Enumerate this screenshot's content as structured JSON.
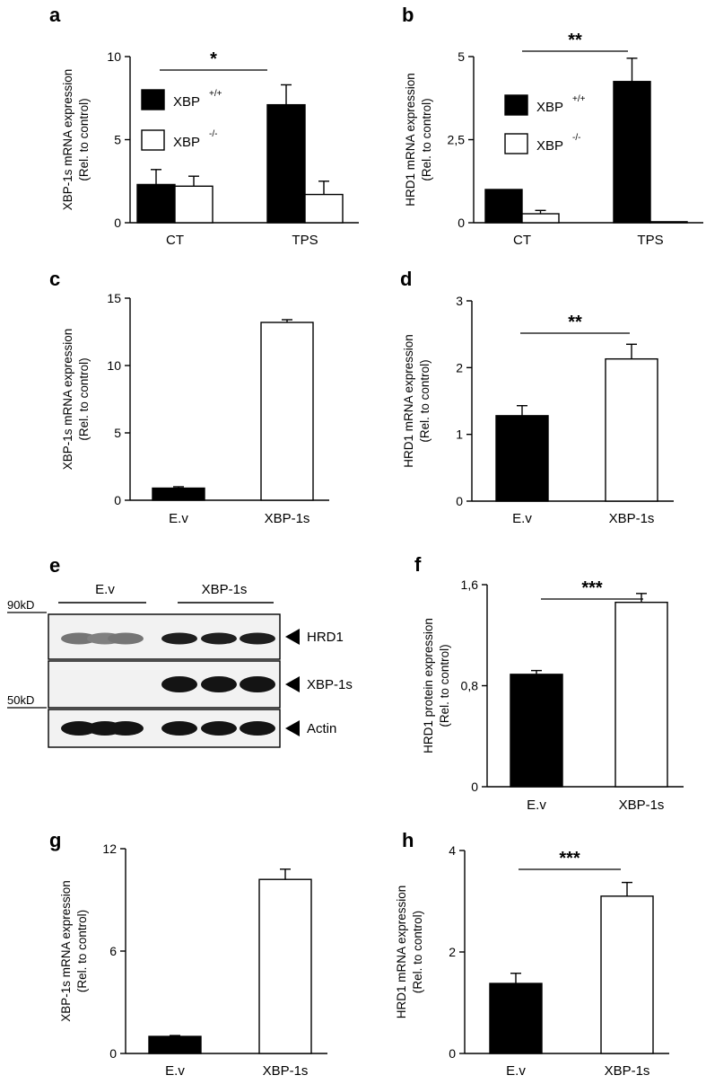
{
  "chart_data": [
    {
      "id": "a",
      "type": "bar",
      "letter": "a",
      "ylabel": [
        "XBP-1s mRNA expression",
        "(Rel. to control)"
      ],
      "ylim": [
        0,
        10
      ],
      "yticks": [
        "0",
        "5",
        "10"
      ],
      "ytick_values": [
        0,
        5,
        10
      ],
      "categories": [
        "CT",
        "TPS"
      ],
      "legend": [
        {
          "label": "XBP",
          "sup": "+/+",
          "fill": "#000000"
        },
        {
          "label": "XBP",
          "sup": "-/-",
          "fill": "#ffffff"
        }
      ],
      "series": [
        {
          "fill": "#000000",
          "values": [
            2.3,
            7.1
          ],
          "errors": [
            0.9,
            1.2
          ]
        },
        {
          "fill": "#ffffff",
          "values": [
            2.2,
            1.7
          ],
          "errors": [
            0.6,
            0.8
          ]
        }
      ],
      "significance": [
        {
          "label": "*"
        }
      ]
    },
    {
      "id": "b",
      "type": "bar",
      "letter": "b",
      "ylabel": [
        "HRD1 mRNA expression",
        "(Rel. to control)"
      ],
      "ylim": [
        0,
        5
      ],
      "yticks": [
        "0",
        "2,5",
        "5"
      ],
      "ytick_values": [
        0,
        2.5,
        5
      ],
      "categories": [
        "CT",
        "TPS"
      ],
      "legend": [
        {
          "label": "XBP",
          "sup": "+/+",
          "fill": "#000000"
        },
        {
          "label": "XBP",
          "sup": "-/-",
          "fill": "#ffffff"
        }
      ],
      "series": [
        {
          "fill": "#000000",
          "values": [
            1.0,
            4.25
          ],
          "errors": [
            0,
            0.7
          ]
        },
        {
          "fill": "#ffffff",
          "values": [
            0.27,
            0.03
          ],
          "errors": [
            0.1,
            0
          ]
        }
      ],
      "significance": [
        {
          "label": "**"
        }
      ]
    },
    {
      "id": "c",
      "type": "bar",
      "letter": "c",
      "ylabel": [
        "XBP-1s mRNA expression",
        "(Rel. to control)"
      ],
      "ylim": [
        0,
        15
      ],
      "yticks": [
        "0",
        "5",
        "10",
        "15"
      ],
      "ytick_values": [
        0,
        5,
        10,
        15
      ],
      "categories": [
        "E.v",
        "XBP-1s"
      ],
      "fills": [
        "#000000",
        "#ffffff"
      ],
      "values": [
        0.9,
        13.2
      ],
      "errors": [
        0.1,
        0.2
      ],
      "significance": []
    },
    {
      "id": "d",
      "type": "bar",
      "letter": "d",
      "ylabel": [
        "HRD1 mRNA expression",
        "(Rel. to control)"
      ],
      "ylim": [
        0,
        3
      ],
      "yticks": [
        "0",
        "1",
        "2",
        "3"
      ],
      "ytick_values": [
        0,
        1,
        2,
        3
      ],
      "categories": [
        "E.v",
        "XBP-1s"
      ],
      "fills": [
        "#000000",
        "#ffffff"
      ],
      "values": [
        1.28,
        2.13
      ],
      "errors": [
        0.15,
        0.22
      ],
      "significance": [
        {
          "label": "**"
        }
      ]
    },
    {
      "id": "f",
      "type": "bar",
      "letter": "f",
      "ylabel": [
        "HRD1 protein expression",
        "(Rel. to control)"
      ],
      "ylim": [
        0,
        1.6
      ],
      "yticks": [
        "0",
        "0,8",
        "1,6"
      ],
      "ytick_values": [
        0,
        0.8,
        1.6
      ],
      "categories": [
        "E.v",
        "XBP-1s"
      ],
      "fills": [
        "#000000",
        "#ffffff"
      ],
      "values": [
        0.89,
        1.46
      ],
      "errors": [
        0.03,
        0.07
      ],
      "significance": [
        {
          "label": "***"
        }
      ]
    },
    {
      "id": "g",
      "type": "bar",
      "letter": "g",
      "ylabel": [
        "XBP-1s mRNA expression",
        "(Rel. to control)"
      ],
      "ylim": [
        0,
        12
      ],
      "yticks": [
        "0",
        "6",
        "12"
      ],
      "ytick_values": [
        0,
        6,
        12
      ],
      "categories": [
        "E.v",
        "XBP-1s"
      ],
      "fills": [
        "#000000",
        "#ffffff"
      ],
      "values": [
        1.0,
        10.2
      ],
      "errors": [
        0.05,
        0.6
      ],
      "significance": []
    },
    {
      "id": "h",
      "type": "bar",
      "letter": "h",
      "ylabel": [
        "HRD1 mRNA expression",
        "(Rel. to control)"
      ],
      "ylim": [
        0,
        4
      ],
      "yticks": [
        "0",
        "2",
        "4"
      ],
      "ytick_values": [
        0,
        2,
        4
      ],
      "categories": [
        "E.v",
        "XBP-1s"
      ],
      "fills": [
        "#000000",
        "#ffffff"
      ],
      "values": [
        1.38,
        3.1
      ],
      "errors": [
        0.2,
        0.27
      ],
      "significance": [
        {
          "label": "***"
        }
      ]
    }
  ],
  "blot": {
    "letter": "e",
    "groups": [
      "E.v",
      "XBP-1s"
    ],
    "markers": [
      "90kD",
      "50kD"
    ],
    "rows": [
      {
        "label": "HRD1",
        "intensities": [
          0.55,
          0.5,
          0.55,
          0.95,
          0.95,
          0.95
        ]
      },
      {
        "label": "XBP-1s",
        "intensities": [
          0,
          0,
          0,
          1,
          1,
          1
        ]
      },
      {
        "label": "Actin",
        "intensities": [
          1,
          1,
          1,
          1,
          1,
          1
        ]
      }
    ]
  }
}
